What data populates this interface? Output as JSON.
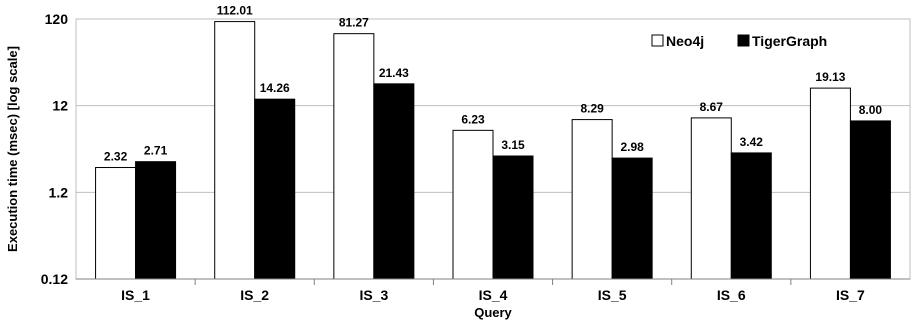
{
  "chart_data": {
    "type": "bar",
    "title": "",
    "xlabel": "Query",
    "ylabel": "Execution time (msec) [log scale]",
    "yscale": "log",
    "ylim": [
      0.12,
      120
    ],
    "yticks": [
      0.12,
      1.2,
      12,
      120
    ],
    "ytick_labels": [
      "0.12",
      "1.2",
      "12",
      "120"
    ],
    "categories": [
      "IS_1",
      "IS_2",
      "IS_3",
      "IS_4",
      "IS_5",
      "IS_6",
      "IS_7"
    ],
    "series": [
      {
        "name": "Neo4j",
        "color": "#ffffff",
        "values": [
          2.32,
          112.01,
          81.27,
          6.23,
          8.29,
          8.67,
          19.13
        ],
        "labels": [
          "2.32",
          "112.01",
          "81.27",
          "6.23",
          "8.29",
          "8.67",
          "19.13"
        ]
      },
      {
        "name": "TigerGraph",
        "color": "#000000",
        "values": [
          2.71,
          14.26,
          21.43,
          3.15,
          2.98,
          3.42,
          8.0
        ],
        "labels": [
          "2.71",
          "14.26",
          "21.43",
          "3.15",
          "2.98",
          "3.42",
          "8.00"
        ]
      }
    ],
    "grid": true,
    "legend": "top-right"
  }
}
